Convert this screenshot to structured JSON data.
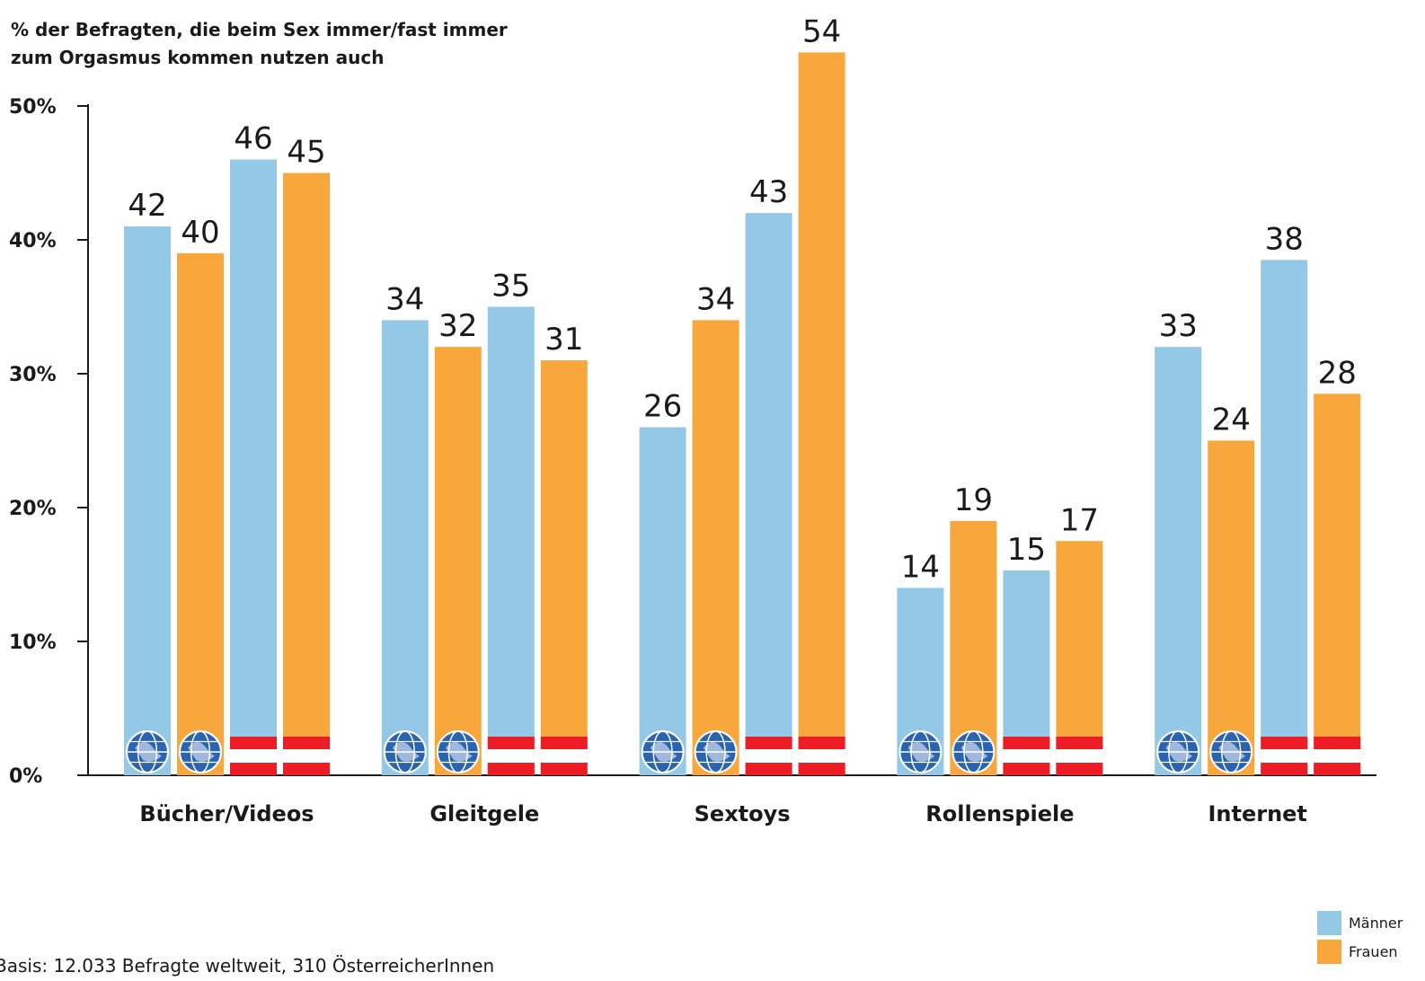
{
  "subtitle_line1": "% der Befragten, die beim Sex immer/fast immer",
  "subtitle_line2": "zum Orgasmus kommen nutzen auch",
  "footnote": "Basis: 12.033 Befragte weltweit, 310 ÖsterreicherInnen",
  "colors": {
    "maenner": "#93c8e6",
    "frauen": "#f8a73d",
    "flag_red": "#ee1c25",
    "globe": "#2a63b0"
  },
  "legend": [
    {
      "label": "Männer",
      "color": "#93c8e6"
    },
    {
      "label": "Frauen",
      "color": "#f8a73d"
    }
  ],
  "chart_data": {
    "type": "bar",
    "categories": [
      "Bücher/Videos",
      "Gleitgele",
      "Sextoys",
      "Rollenspiele",
      "Internet"
    ],
    "yticks": [
      "0%",
      "10%",
      "20%",
      "30%",
      "40%",
      "50%"
    ],
    "ylim": [
      0,
      50
    ],
    "grid": false,
    "legend_position": "bottom-right",
    "bar_groups": [
      "weltweit",
      "weltweit",
      "Österreich",
      "Österreich"
    ],
    "bar_groups_icons": [
      "globe-icon",
      "globe-icon",
      "austria-flag-icon",
      "austria-flag-icon"
    ],
    "series": [
      {
        "name": "Männer",
        "values": [
          42,
          34,
          26,
          14,
          33
        ],
        "drawn": [
          41,
          34,
          26,
          14,
          32
        ]
      },
      {
        "name": "Frauen",
        "values": [
          40,
          32,
          34,
          19,
          24
        ],
        "drawn": [
          39,
          32,
          34,
          19,
          25
        ]
      },
      {
        "name": "Männer",
        "values": [
          46,
          35,
          43,
          15,
          38
        ],
        "drawn": [
          46,
          35,
          42,
          15.3,
          38.5
        ]
      },
      {
        "name": "Frauen",
        "values": [
          45,
          31,
          54,
          17,
          28
        ],
        "drawn": [
          45,
          31,
          54,
          17.5,
          28.5
        ]
      }
    ]
  }
}
